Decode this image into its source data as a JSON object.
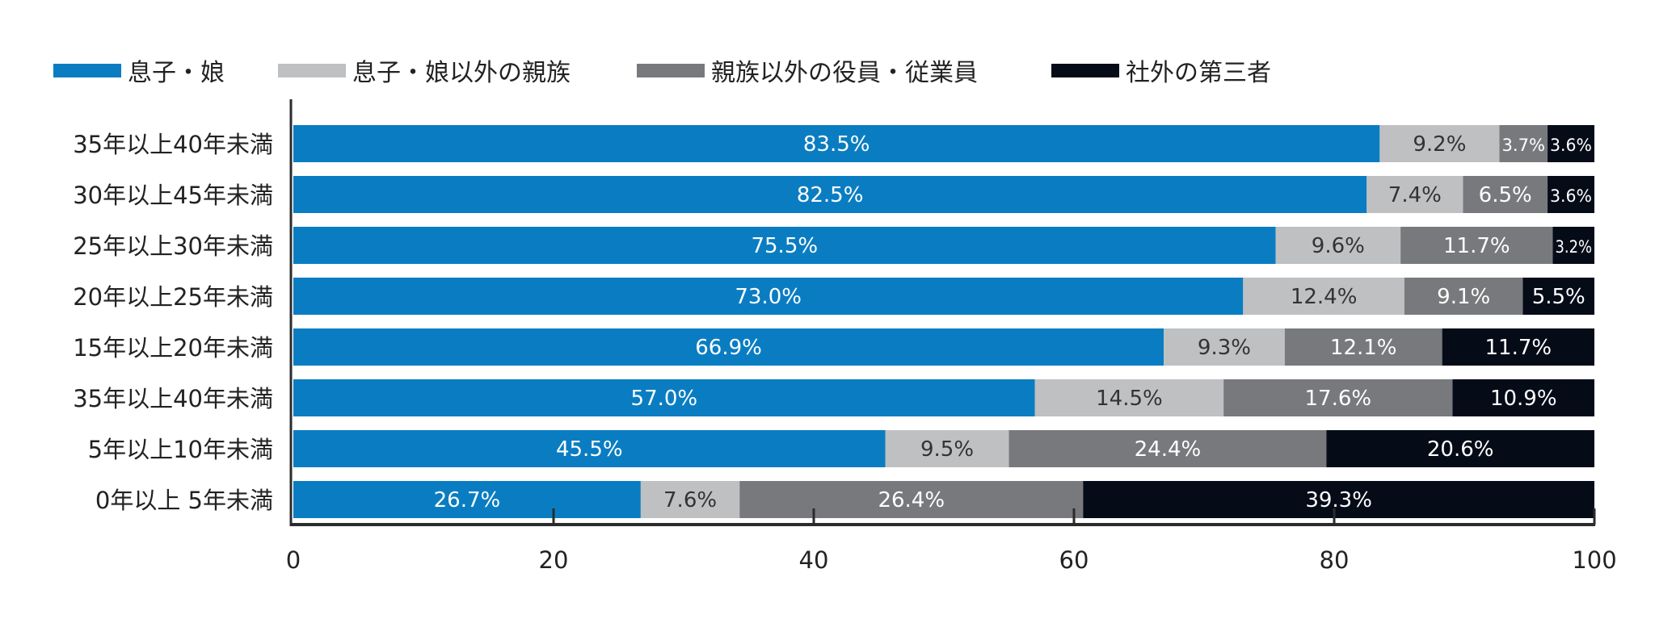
{
  "chart_data": {
    "type": "bar",
    "orientation": "horizontal",
    "stacked": true,
    "title": "",
    "xlabel": "",
    "ylabel": "",
    "xlim": [
      0,
      100
    ],
    "x_ticks": [
      0,
      20,
      40,
      60,
      80,
      100
    ],
    "x_tick_labels": [
      "0",
      "20",
      "40",
      "60",
      "80",
      "100"
    ],
    "grid": false,
    "legend_position": "top-left",
    "categories": [
      "35年以上40年未満",
      "30年以上45年未満",
      "25年以上30年未満",
      "20年以上25年未満",
      "15年以上20年未満",
      "35年以上40年未満",
      "5年以上10年未満",
      "0年以上 5年未満"
    ],
    "series": [
      {
        "name": "息子・娘",
        "color": "#0a7dc2",
        "label_color": "#ffffff",
        "values": [
          83.5,
          82.5,
          75.5,
          73.0,
          66.9,
          57.0,
          45.5,
          26.7
        ],
        "labels": [
          "83.5%",
          "82.5%",
          "75.5%",
          "73.0%",
          "66.9%",
          "57.0%",
          "45.5%",
          "26.7%"
        ]
      },
      {
        "name": "息子・娘以外の親族",
        "color": "#bfc0c2",
        "label_color": "#333333",
        "values": [
          9.2,
          7.4,
          9.6,
          12.4,
          9.3,
          14.5,
          9.5,
          7.6
        ],
        "labels": [
          "9.2%",
          "7.4%",
          "9.6%",
          "12.4%",
          "9.3%",
          "14.5%",
          "9.5%",
          "7.6%"
        ]
      },
      {
        "name": "親族以外の役員・従業員",
        "color": "#78797c",
        "label_color": "#ffffff",
        "values": [
          3.7,
          6.5,
          11.7,
          9.1,
          12.1,
          17.6,
          24.4,
          26.4
        ],
        "labels": [
          "3.7%",
          "6.5%",
          "11.7%",
          "9.1%",
          "12.1%",
          "17.6%",
          "24.4%",
          "26.4%"
        ]
      },
      {
        "name": "社外の第三者",
        "color": "#050c18",
        "label_color": "#ffffff",
        "values": [
          3.6,
          3.6,
          3.2,
          5.5,
          11.7,
          10.9,
          20.6,
          39.3
        ],
        "labels": [
          "3.6%",
          "3.6%",
          "3.2%",
          "5.5%",
          "11.7%",
          "10.9%",
          "20.6%",
          "39.3%"
        ]
      }
    ]
  }
}
